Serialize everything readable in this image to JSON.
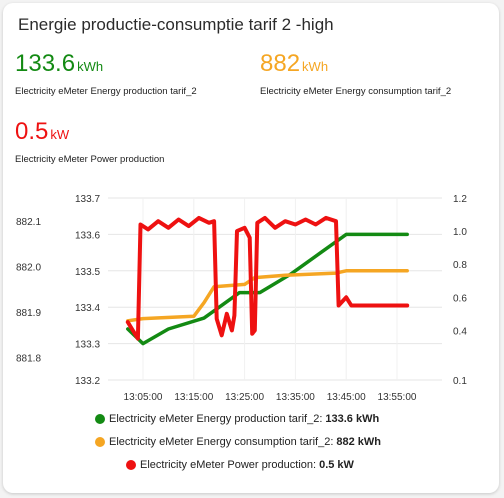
{
  "card": {
    "title": "Energie productie-consumptie tarif 2 -high"
  },
  "stats": {
    "production": {
      "value": "133.6",
      "unit": "kWh",
      "label": "Electricity eMeter Energy production tarif_2",
      "color": "#138a13"
    },
    "consumption": {
      "value": "882",
      "unit": "kWh",
      "label": "Electricity eMeter Energy consumption tarif_2",
      "color": "#f5a623"
    },
    "power": {
      "value": "0.5",
      "unit": "kW",
      "label": "Electricity eMeter Power production",
      "color": "#ee1111"
    }
  },
  "legend": [
    {
      "label": "Electricity eMeter Energy production tarif_2:",
      "value": "133.6 kWh",
      "color": "#138a13"
    },
    {
      "label": "Electricity eMeter Energy consumption tarif_2:",
      "value": "882 kWh",
      "color": "#f5a623"
    },
    {
      "label": "Electricity eMeter Power production:",
      "value": "0.5 kW",
      "color": "#ee1111"
    }
  ],
  "chart_data": {
    "type": "line",
    "x_ticks": [
      "13:05:00",
      "13:15:00",
      "13:25:00",
      "13:35:00",
      "13:45:00",
      "13:55:00"
    ],
    "y_axes": {
      "consumption": {
        "ticks": [
          "882.1",
          "882.0",
          "881.9",
          "881.8"
        ],
        "range": [
          881.75,
          882.15
        ]
      },
      "production": {
        "ticks": [
          "133.7",
          "133.6",
          "133.5",
          "133.4",
          "133.3",
          "133.2"
        ],
        "range": [
          133.2,
          133.7
        ]
      },
      "power": {
        "ticks": [
          "1.2",
          "1.0",
          "0.8",
          "0.6",
          "0.4",
          "0.1"
        ],
        "range": [
          0.1,
          1.2
        ]
      }
    },
    "grid": "horizontal",
    "series": [
      {
        "name": "Electricity eMeter Energy production tarif_2",
        "color": "#138a13",
        "axis": "production",
        "points": [
          [
            "13:02:00",
            133.34
          ],
          [
            "13:05:00",
            133.3
          ],
          [
            "13:10:00",
            133.34
          ],
          [
            "13:17:00",
            133.37
          ],
          [
            "13:20:00",
            133.4
          ],
          [
            "13:24:00",
            133.44
          ],
          [
            "13:28:00",
            133.44
          ],
          [
            "13:34:00",
            133.49
          ],
          [
            "13:40:00",
            133.55
          ],
          [
            "13:45:00",
            133.6
          ],
          [
            "13:57:00",
            133.6
          ]
        ]
      },
      {
        "name": "Electricity eMeter Energy consumption tarif_2",
        "color": "#f5a623",
        "axis": "consumption",
        "points": [
          [
            "13:02:00",
            881.88
          ],
          [
            "13:05:00",
            881.885
          ],
          [
            "13:15:00",
            881.89
          ],
          [
            "13:17:00",
            881.92
          ],
          [
            "13:19:00",
            881.955
          ],
          [
            "13:25:00",
            881.96
          ],
          [
            "13:27:00",
            881.975
          ],
          [
            "13:33:00",
            881.98
          ],
          [
            "13:43:00",
            881.985
          ],
          [
            "13:45:00",
            881.99
          ],
          [
            "13:57:00",
            881.99
          ]
        ]
      },
      {
        "name": "Electricity eMeter Power production",
        "color": "#ee1111",
        "axis": "power",
        "points": [
          [
            "13:02:00",
            0.45
          ],
          [
            "13:03:00",
            0.4
          ],
          [
            "13:04:00",
            0.35
          ],
          [
            "13:04:30",
            1.04
          ],
          [
            "13:06:00",
            1.01
          ],
          [
            "13:08:00",
            1.06
          ],
          [
            "13:10:00",
            1.02
          ],
          [
            "13:12:00",
            1.07
          ],
          [
            "13:14:00",
            1.03
          ],
          [
            "13:16:00",
            1.08
          ],
          [
            "13:18:00",
            1.05
          ],
          [
            "13:19:00",
            1.06
          ],
          [
            "13:19:30",
            0.47
          ],
          [
            "13:20:30",
            0.37
          ],
          [
            "13:21:30",
            0.5
          ],
          [
            "13:22:30",
            0.4
          ],
          [
            "13:23:00",
            0.49
          ],
          [
            "13:23:30",
            1.0
          ],
          [
            "13:25:00",
            1.02
          ],
          [
            "13:26:00",
            0.96
          ],
          [
            "13:26:30",
            0.38
          ],
          [
            "13:27:00",
            0.4
          ],
          [
            "13:27:30",
            1.05
          ],
          [
            "13:29:00",
            1.08
          ],
          [
            "13:31:00",
            1.02
          ],
          [
            "13:33:00",
            1.06
          ],
          [
            "13:35:00",
            1.04
          ],
          [
            "13:37:00",
            1.07
          ],
          [
            "13:39:00",
            1.04
          ],
          [
            "13:41:00",
            1.08
          ],
          [
            "13:43:00",
            1.06
          ],
          [
            "13:43:30",
            0.55
          ],
          [
            "13:45:00",
            0.6
          ],
          [
            "13:46:00",
            0.55
          ],
          [
            "13:57:00",
            0.55
          ]
        ]
      }
    ]
  }
}
